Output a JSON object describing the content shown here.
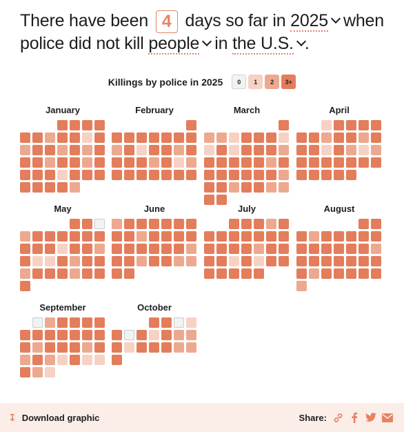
{
  "headline": {
    "part1": "There have been",
    "count": "4",
    "part2": "days so far in",
    "year_select": "2025",
    "part3": "when",
    "part4": "police did not kill",
    "subject_select": "people",
    "part5": "in",
    "region_select": "the U.S.",
    "part6": "."
  },
  "legend": {
    "title": "Killings by police in 2025",
    "items": [
      {
        "label": "0",
        "color": "#f1f2f2"
      },
      {
        "label": "1",
        "color": "#f6d2c4"
      },
      {
        "label": "2",
        "color": "#eca98f"
      },
      {
        "label": "3+",
        "color": "#e37d5b"
      }
    ]
  },
  "colors": {
    "level_0": "#f1f2f2",
    "level_1": "#f6d2c4",
    "level_2": "#eca98f",
    "level_3": "#e37d5b",
    "accent": "#e58363",
    "footer_bg": "#fbeee9"
  },
  "months": [
    {
      "name": "January",
      "offset": 3,
      "levels": "3333 3323313 2332323 3323323 3331333 33332"
    },
    {
      "name": "February",
      "offset": 6,
      "levels": "3 3333333 2313323 3332312 3333333"
    },
    {
      "name": "March",
      "offset": 6,
      "levels": "3 2213331 1313332 3333323 3333332 3323322 33"
    },
    {
      "name": "April",
      "offset": 2,
      "levels": "13333 3323323 3313212 3333333 33333"
    },
    {
      "name": "May",
      "offset": 4,
      "levels": "330 2333333 3331332 3113233 2333233 3"
    },
    {
      "name": "June",
      "offset": 0,
      "levels": "2333333 3323333 3333332 3323322 33"
    },
    {
      "name": "July",
      "offset": 2,
      "levels": "33323 3333333 3333233 3313133 33333"
    },
    {
      "name": "August",
      "offset": 5,
      "levels": "33 3233333 3333332 3333333 3233333 2"
    },
    {
      "name": "September",
      "offset": 1,
      "levels": "023333 3333333 3233323 2321311 321"
    },
    {
      "name": "October",
      "offset": 3,
      "levels": "3301 3031322 3133322 3"
    }
  ],
  "footer": {
    "download_label": "Download graphic",
    "share_label": "Share:",
    "share_icons": [
      "link-icon",
      "facebook-icon",
      "twitter-icon",
      "email-icon"
    ]
  }
}
